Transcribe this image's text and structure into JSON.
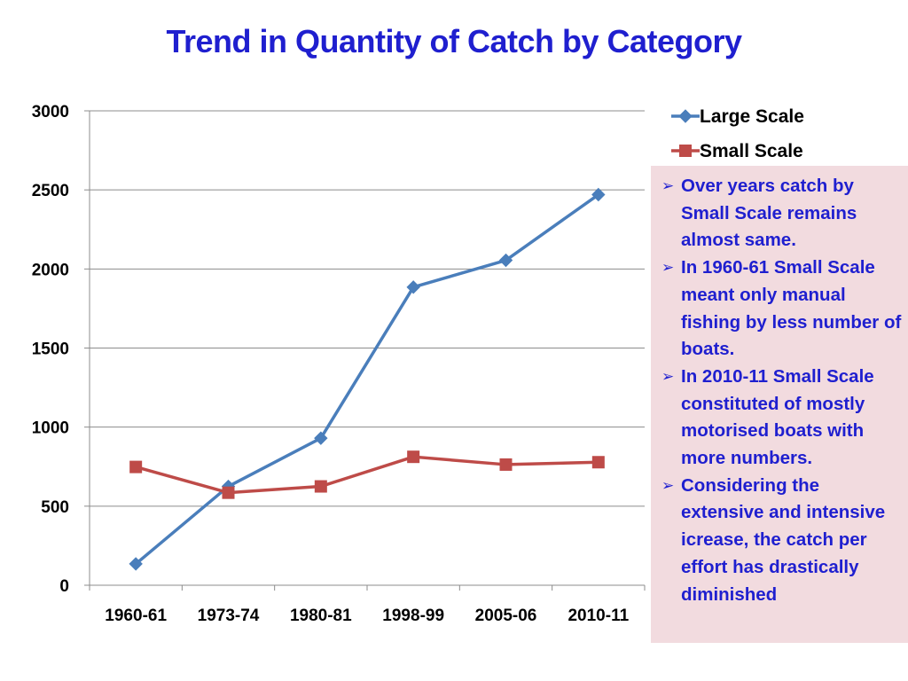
{
  "chart_data": {
    "type": "line",
    "title": "Trend in Quantity of Catch by Category",
    "xlabel": "",
    "ylabel": "",
    "categories": [
      "1960-61",
      "1973-74",
      "1980-81",
      "1998-99",
      "2005-06",
      "2010-11"
    ],
    "ylim": [
      0,
      3000
    ],
    "yticks": [
      0,
      500,
      1000,
      1500,
      2000,
      2500,
      3000
    ],
    "grid": true,
    "legend_position": "top-right",
    "series": [
      {
        "name": "Large Scale",
        "values": [
          135,
          625,
          930,
          1885,
          2055,
          2470
        ],
        "color": "#4a7ebb",
        "marker": "diamond"
      },
      {
        "name": "Small Scale",
        "values": [
          748,
          585,
          625,
          812,
          763,
          778
        ],
        "color": "#be4b48",
        "marker": "square"
      }
    ]
  },
  "notes": {
    "bullet_glyph": "➢",
    "items": [
      "Over years catch by Small Scale remains almost same.",
      "In 1960-61 Small Scale meant only manual fishing by less number of boats.",
      "In 2010-11 Small Scale constituted of mostly motorised boats with more numbers.",
      "Considering the extensive and intensive icrease, the catch per effort has drastically diminished"
    ]
  }
}
